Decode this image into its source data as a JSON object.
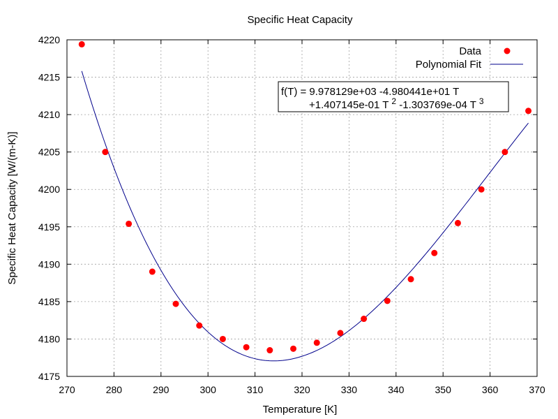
{
  "chart_data": {
    "type": "scatter",
    "title": "Specific Heat Capacity",
    "xlabel": "Temperature [K]",
    "ylabel": "Specific Heat Capacity [W/(m-K)]",
    "xlim": [
      270,
      370
    ],
    "ylim": [
      4175,
      4220
    ],
    "x_ticks": [
      270,
      280,
      290,
      300,
      310,
      320,
      330,
      340,
      350,
      360,
      370
    ],
    "y_ticks": [
      4175,
      4180,
      4185,
      4190,
      4195,
      4200,
      4205,
      4210,
      4215,
      4220
    ],
    "grid": true,
    "legend_position": "top-right",
    "series": [
      {
        "name": "Data",
        "kind": "points",
        "color": "#ff0000",
        "x": [
          273.15,
          278.15,
          283.15,
          288.15,
          293.15,
          298.15,
          303.15,
          308.15,
          313.15,
          318.15,
          323.15,
          328.15,
          333.15,
          338.15,
          343.15,
          348.15,
          353.15,
          358.15,
          363.15,
          368.15
        ],
        "y": [
          4219.4,
          4205.0,
          4195.4,
          4189.0,
          4184.7,
          4181.8,
          4180.0,
          4178.9,
          4178.5,
          4178.7,
          4179.5,
          4180.8,
          4182.7,
          4185.1,
          4188.0,
          4191.5,
          4195.5,
          4200.0,
          4205.0,
          4210.5
        ]
      },
      {
        "name": "Polynomial Fit",
        "kind": "line",
        "color": "#00008b",
        "coefficients": [
          9978.129,
          -49.80441,
          0.1407145,
          -0.0001303769
        ],
        "x_range": [
          273.15,
          368.15
        ]
      }
    ],
    "annotation": {
      "line1": "f(T) = 9.978129e+03 -4.980441e+01 T",
      "line2_prefix": "+1.407145e-01 T",
      "line2_exp1": "2",
      "line2_mid": " -1.303769e-04 T",
      "line2_exp2": "3"
    }
  }
}
